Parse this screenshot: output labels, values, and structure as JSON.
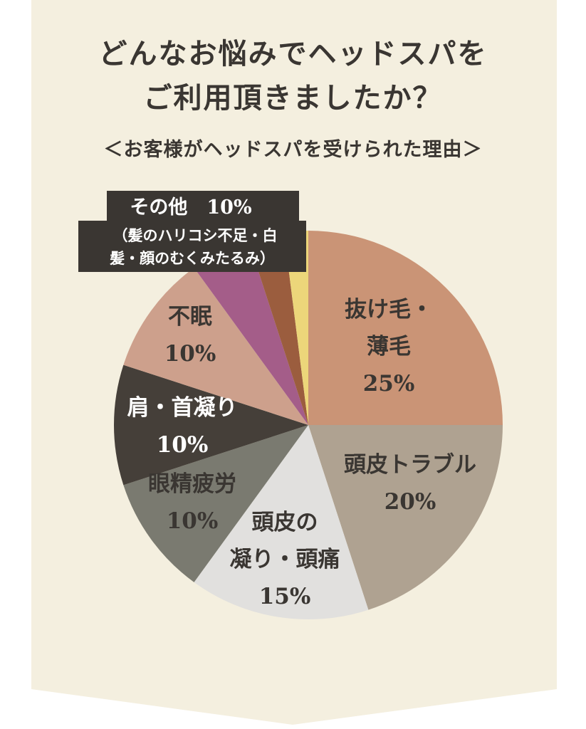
{
  "colors": {
    "background": "#f4efdf",
    "outer": "#ffffff",
    "title_text": "#3a3632",
    "label_dark": "#3a3632",
    "label_light": "#ffffff",
    "callout_bg": "#3a3632"
  },
  "header": {
    "title_line1": "どんなお悩みでヘッドスパを",
    "title_line2": "ご利用頂きましたか？",
    "subtitle": "＜お客様がヘッドスパを受けられた理由＞"
  },
  "chart_data": {
    "type": "pie",
    "title": "どんなお悩みでヘッドスパをご利用頂きましたか？",
    "subtitle": "＜お客様がヘッドスパを受けられた理由＞",
    "legend": "none",
    "slices": [
      {
        "label_lines": [
          "抜け毛・",
          "薄毛"
        ],
        "value_text": "25%",
        "value": 25,
        "color": "#ca9476",
        "text": "dark"
      },
      {
        "label_lines": [
          "頭皮トラブル"
        ],
        "value_text": "20%",
        "value": 20,
        "color": "#afa291",
        "text": "dark"
      },
      {
        "label_lines": [
          "頭皮の",
          "凝り・頭痛"
        ],
        "value_text": "15%",
        "value": 15,
        "color": "#e1e0de",
        "text": "dark"
      },
      {
        "label_lines": [
          "眼精疲労"
        ],
        "value_text": "10%",
        "value": 10,
        "color": "#7a7a70",
        "text": "dark"
      },
      {
        "label_lines": [
          "肩・首凝り"
        ],
        "value_text": "10%",
        "value": 10,
        "color": "#453f39",
        "text": "light"
      },
      {
        "label_lines": [
          "不眠"
        ],
        "value_text": "10%",
        "value": 10,
        "color": "#cda08c",
        "text": "dark"
      },
      {
        "label_lines": [],
        "value_text": "",
        "value": 5,
        "color": "#a45d89",
        "text": "none"
      },
      {
        "label_lines": [],
        "value_text": "",
        "value": 3,
        "color": "#9b5d3e",
        "text": "none"
      },
      {
        "label_lines": [],
        "value_text": "",
        "value": 2,
        "color": "#ecd67a",
        "text": "none"
      }
    ],
    "callout": {
      "line1": "その他　10%",
      "line2": "（髪のハリコシ不足・白",
      "line3": "髪・顔のむくみたるみ）"
    }
  }
}
